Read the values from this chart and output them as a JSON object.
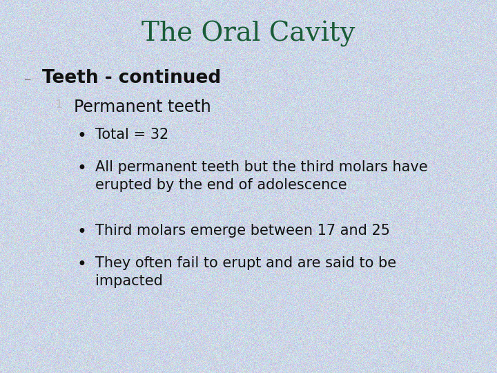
{
  "title": "The Oral Cavity",
  "title_color": "#1a5c38",
  "title_fontsize": 28,
  "title_font": "DejaVu Serif",
  "subtitle": "Teeth - continued",
  "subtitle_color": "#111111",
  "subtitle_fontsize": 19,
  "subtitle_font": "DejaVu Sans",
  "number_label": "1",
  "number_color": "#bbbbbb",
  "number_fontsize": 11,
  "level1_text": "Permanent teeth",
  "level1_fontsize": 17,
  "level1_color": "#111111",
  "level1_font": "DejaVu Sans",
  "bullets": [
    "Total = 32",
    "All permanent teeth but the third molars have\nerupted by the end of adolescence",
    "Third molars emerge between 17 and 25",
    "They often fail to erupt and are said to be\nimpacted"
  ],
  "bullet_fontsize": 15,
  "bullet_color": "#111111",
  "bullet_font": "DejaVu Sans",
  "base_r": 0.8,
  "base_g": 0.843,
  "base_b": 0.906,
  "noise_scale": 0.055,
  "pink_threshold": 0.97,
  "pink_add_r": 0.1,
  "pink_sub_gb": 0.04,
  "fig_width": 7.2,
  "fig_height": 5.4,
  "dpi": 100
}
